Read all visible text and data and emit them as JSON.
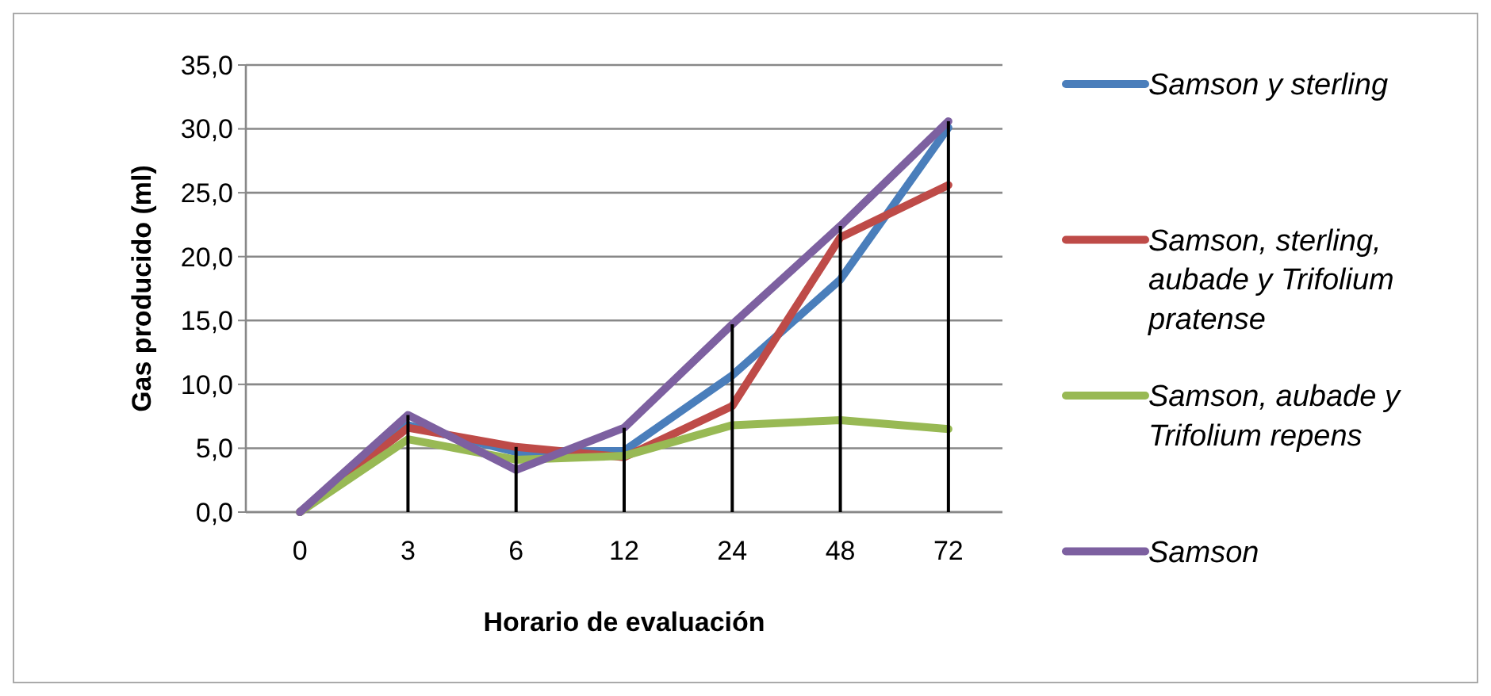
{
  "chart_data": {
    "type": "line",
    "xlabel": "Horario de evaluación",
    "ylabel": "Gas producido (ml)",
    "categories": [
      "0",
      "3",
      "6",
      "12",
      "24",
      "48",
      "72"
    ],
    "series": [
      {
        "name": "Samson y sterling",
        "color": "#4a7ebb",
        "values": [
          0,
          6.8,
          4.7,
          4.8,
          10.7,
          18.2,
          30.1
        ]
      },
      {
        "name": "Samson, sterling, aubade y Trifolium pratense",
        "color": "#be4b48",
        "values": [
          0,
          6.6,
          5.1,
          4.3,
          8.3,
          21.5,
          25.6
        ]
      },
      {
        "name": "Samson, aubade y Trifolium repens",
        "color": "#98b954",
        "values": [
          0,
          5.7,
          4.1,
          4.4,
          6.8,
          7.2,
          6.5
        ]
      },
      {
        "name": "Samson",
        "color": "#7d60a0",
        "values": [
          0,
          7.6,
          3.3,
          6.6,
          14.7,
          22.4,
          30.6
        ]
      },
      {
        "type": "bar",
        "color": "#000000",
        "values": [
          0,
          7.6,
          5.1,
          6.6,
          14.7,
          22.4,
          30.6
        ]
      }
    ],
    "ylim": [
      0,
      35
    ],
    "yticks": [
      {
        "value": 0,
        "label": "0,0"
      },
      {
        "value": 5,
        "label": "5,0"
      },
      {
        "value": 10,
        "label": "10,0"
      },
      {
        "value": 15,
        "label": "15,0"
      },
      {
        "value": 20,
        "label": "20,0"
      },
      {
        "value": 25,
        "label": "25,0"
      },
      {
        "value": 30,
        "label": "30,0"
      },
      {
        "value": 35,
        "label": "35,0"
      }
    ],
    "grid": "y",
    "legend": "right",
    "marker": "none",
    "line_style": "solid"
  }
}
